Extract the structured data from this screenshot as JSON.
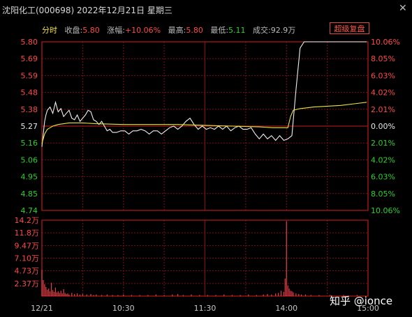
{
  "header": {
    "title": "沈阳化工(000698) 2022年12月21日 星期三",
    "close_label": "✕"
  },
  "info": {
    "mode": "分时",
    "close_label": "收盘:",
    "close_value": "5.80",
    "change_label": "涨幅:",
    "change_value": "+10.06%",
    "high_label": "最高:",
    "high_value": "5.80",
    "low_label": "最低:",
    "low_value": "5.11",
    "volume_label": "成交:",
    "volume_value": "92.9万"
  },
  "restore_button": "超级复盘",
  "watermark": "知乎 @ionce",
  "colors": {
    "up": "#ff4a4a",
    "down": "#2ed02e",
    "flat": "#e8e8e8",
    "price_line": "#f0f0f0",
    "avg_line": "#e8e840",
    "grid": "#7a1010",
    "volume_bar": "#e8404a"
  },
  "chart_data": {
    "type": "line",
    "prev_close": 5.27,
    "price_ticks": [
      "5.80",
      "5.69",
      "5.59",
      "5.48",
      "5.38",
      "5.27",
      "5.16",
      "5.06",
      "4.95",
      "4.85",
      "4.74"
    ],
    "percent_ticks": [
      "10.06%",
      "8.05%",
      "6.03%",
      "4.02%",
      "2.01%",
      "0.00%",
      "2.01%",
      "4.02%",
      "6.03%",
      "8.05%",
      "10.06%"
    ],
    "time_ticks": [
      "12/21",
      "10:30",
      "11:30",
      "14:00",
      "15:00"
    ],
    "volume_ticks": [
      "14.2万",
      "11.8万",
      "9.47万",
      "7.10万",
      "4.73万",
      "2.37万"
    ],
    "ylim": [
      4.74,
      5.8
    ],
    "volume_ylim": [
      0,
      14.2
    ],
    "x_minutes": 240,
    "series": [
      {
        "name": "price",
        "x": [
          0,
          1,
          2,
          3,
          4,
          6,
          8,
          10,
          12,
          14,
          16,
          18,
          20,
          22,
          24,
          26,
          28,
          30,
          32,
          34,
          36,
          38,
          40,
          42,
          44,
          46,
          48,
          50,
          52,
          55,
          58,
          61,
          64,
          67,
          70,
          73,
          76,
          79,
          82,
          85,
          88,
          91,
          94,
          97,
          100,
          103,
          106,
          109,
          112,
          115,
          118,
          121,
          124,
          127,
          130,
          133,
          136,
          139,
          142,
          145,
          148,
          151,
          154,
          157,
          160,
          163,
          166,
          169,
          172,
          175,
          178,
          181,
          184,
          187,
          190,
          193,
          196,
          199,
          202,
          205,
          208,
          211,
          214,
          217,
          220,
          223,
          226,
          229,
          232,
          235,
          239
        ],
        "y": [
          5.14,
          5.22,
          5.3,
          5.34,
          5.37,
          5.39,
          5.35,
          5.42,
          5.36,
          5.38,
          5.33,
          5.35,
          5.37,
          5.32,
          5.31,
          5.34,
          5.3,
          5.32,
          5.34,
          5.37,
          5.36,
          5.31,
          5.3,
          5.28,
          5.3,
          5.27,
          5.24,
          5.25,
          5.23,
          5.23,
          5.24,
          5.24,
          5.22,
          5.24,
          5.24,
          5.25,
          5.24,
          5.22,
          5.24,
          5.24,
          5.22,
          5.24,
          5.26,
          5.27,
          5.25,
          5.27,
          5.3,
          5.32,
          5.28,
          5.25,
          5.27,
          5.25,
          5.26,
          5.25,
          5.27,
          5.25,
          5.27,
          5.24,
          5.26,
          5.27,
          5.25,
          5.25,
          5.26,
          5.22,
          5.19,
          5.22,
          5.19,
          5.21,
          5.18,
          5.21,
          5.18,
          5.19,
          5.21,
          5.5,
          5.76,
          5.8,
          5.8,
          5.8,
          5.8,
          5.8,
          5.8,
          5.8,
          5.8,
          5.8,
          5.8,
          5.8,
          5.8,
          5.8,
          5.8,
          5.8,
          5.8
        ]
      },
      {
        "name": "avg",
        "x": [
          0,
          2,
          4,
          6,
          8,
          12,
          16,
          20,
          30,
          40,
          60,
          80,
          100,
          120,
          140,
          160,
          170,
          175,
          178,
          181,
          183,
          185,
          190,
          200,
          220,
          239
        ],
        "y": [
          5.16,
          5.22,
          5.25,
          5.26,
          5.27,
          5.28,
          5.285,
          5.29,
          5.29,
          5.285,
          5.28,
          5.28,
          5.28,
          5.275,
          5.27,
          5.265,
          5.26,
          5.26,
          5.26,
          5.26,
          5.33,
          5.37,
          5.38,
          5.39,
          5.4,
          5.42
        ]
      }
    ],
    "volume": [
      {
        "x": 0,
        "v": 4.9
      },
      {
        "x": 1,
        "v": 3.0
      },
      {
        "x": 2,
        "v": 2.2
      },
      {
        "x": 3,
        "v": 1.7
      },
      {
        "x": 4,
        "v": 1.2
      },
      {
        "x": 5,
        "v": 1.4
      },
      {
        "x": 6,
        "v": 0.9
      },
      {
        "x": 7,
        "v": 2.5
      },
      {
        "x": 8,
        "v": 1.1
      },
      {
        "x": 9,
        "v": 0.8
      },
      {
        "x": 10,
        "v": 1.6
      },
      {
        "x": 11,
        "v": 0.7
      },
      {
        "x": 12,
        "v": 0.9
      },
      {
        "x": 13,
        "v": 0.6
      },
      {
        "x": 14,
        "v": 1.0
      },
      {
        "x": 15,
        "v": 0.5
      },
      {
        "x": 16,
        "v": 1.3
      },
      {
        "x": 17,
        "v": 0.6
      },
      {
        "x": 18,
        "v": 0.4
      },
      {
        "x": 19,
        "v": 0.5
      },
      {
        "x": 20,
        "v": 0.3
      },
      {
        "x": 22,
        "v": 0.6
      },
      {
        "x": 24,
        "v": 0.4
      },
      {
        "x": 26,
        "v": 0.5
      },
      {
        "x": 28,
        "v": 0.3
      },
      {
        "x": 30,
        "v": 0.4
      },
      {
        "x": 33,
        "v": 0.3
      },
      {
        "x": 36,
        "v": 0.4
      },
      {
        "x": 38,
        "v": 0.2
      },
      {
        "x": 40,
        "v": 0.3
      },
      {
        "x": 44,
        "v": 0.2
      },
      {
        "x": 48,
        "v": 0.3
      },
      {
        "x": 52,
        "v": 0.2
      },
      {
        "x": 56,
        "v": 0.2
      },
      {
        "x": 60,
        "v": 0.3
      },
      {
        "x": 66,
        "v": 0.2
      },
      {
        "x": 72,
        "v": 0.2
      },
      {
        "x": 78,
        "v": 0.2
      },
      {
        "x": 84,
        "v": 0.3
      },
      {
        "x": 90,
        "v": 0.2
      },
      {
        "x": 96,
        "v": 0.3
      },
      {
        "x": 100,
        "v": 0.4
      },
      {
        "x": 104,
        "v": 0.2
      },
      {
        "x": 110,
        "v": 0.3
      },
      {
        "x": 116,
        "v": 0.2
      },
      {
        "x": 122,
        "v": 0.2
      },
      {
        "x": 128,
        "v": 0.2
      },
      {
        "x": 134,
        "v": 0.3
      },
      {
        "x": 140,
        "v": 0.2
      },
      {
        "x": 146,
        "v": 0.2
      },
      {
        "x": 152,
        "v": 0.3
      },
      {
        "x": 158,
        "v": 0.2
      },
      {
        "x": 163,
        "v": 0.3
      },
      {
        "x": 166,
        "v": 0.4
      },
      {
        "x": 169,
        "v": 0.3
      },
      {
        "x": 172,
        "v": 0.5
      },
      {
        "x": 174,
        "v": 0.6
      },
      {
        "x": 176,
        "v": 1.0
      },
      {
        "x": 178,
        "v": 0.8
      },
      {
        "x": 179,
        "v": 3.3
      },
      {
        "x": 180,
        "v": 14.0
      },
      {
        "x": 181,
        "v": 2.0
      },
      {
        "x": 182,
        "v": 1.4
      },
      {
        "x": 183,
        "v": 1.0
      },
      {
        "x": 184,
        "v": 0.9
      },
      {
        "x": 185,
        "v": 0.7
      },
      {
        "x": 187,
        "v": 0.5
      },
      {
        "x": 189,
        "v": 0.4
      },
      {
        "x": 191,
        "v": 0.3
      },
      {
        "x": 194,
        "v": 0.3
      },
      {
        "x": 198,
        "v": 0.2
      },
      {
        "x": 204,
        "v": 0.2
      },
      {
        "x": 212,
        "v": 0.2
      },
      {
        "x": 222,
        "v": 0.2
      },
      {
        "x": 232,
        "v": 0.2
      }
    ]
  }
}
